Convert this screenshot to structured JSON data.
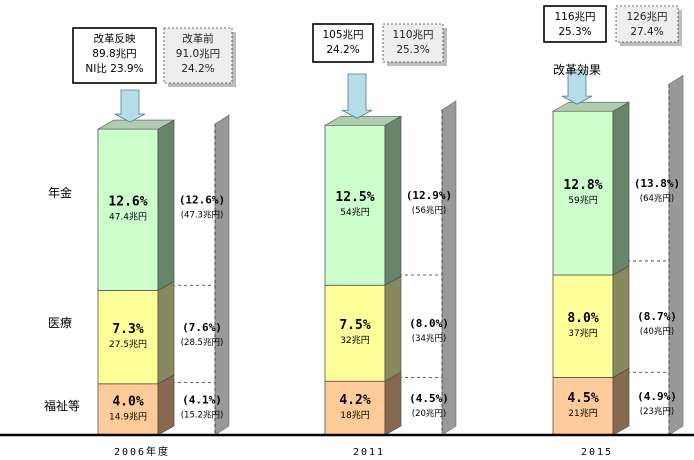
{
  "chart_data": {
    "type": "bar",
    "stacked": true,
    "categories": [
      "2006年度",
      "2011",
      "2015"
    ],
    "series": [
      {
        "name": "年金",
        "values": [
          12.6,
          12.5,
          12.8
        ],
        "amount_labels": [
          "47.4兆円",
          "54兆円",
          "59兆円"
        ],
        "pre_reform_values": [
          12.6,
          12.9,
          13.8
        ],
        "pre_reform_labels": [
          "(12.6%)",
          "(12.9%)",
          "(13.8%)"
        ],
        "pre_reform_amount_labels": [
          "(47.3兆円)",
          "(56兆円)",
          "(64兆円)"
        ]
      },
      {
        "name": "医療",
        "values": [
          7.3,
          7.5,
          8.0
        ],
        "amount_labels": [
          "27.5兆円",
          "32兆円",
          "37兆円"
        ],
        "pre_reform_values": [
          7.6,
          8.0,
          8.7
        ],
        "pre_reform_labels": [
          "(7.6%)",
          "(8.0%)",
          "(8.7%)"
        ],
        "pre_reform_amount_labels": [
          "(28.5兆円)",
          "(34兆円)",
          "(40兆円)"
        ]
      },
      {
        "name": "福祉等",
        "values": [
          4.0,
          4.2,
          4.5
        ],
        "amount_labels": [
          "14.9兆円",
          "18兆円",
          "21兆円"
        ],
        "pre_reform_values": [
          4.1,
          4.5,
          4.9
        ],
        "pre_reform_labels": [
          "(4.1%)",
          "(4.5%)",
          "(4.9%)"
        ],
        "pre_reform_amount_labels": [
          "(15.2兆円)",
          "(20兆円)",
          "(23兆円)"
        ]
      }
    ],
    "value_labels": [
      [
        "12.6%",
        "12.5%",
        "12.8%"
      ],
      [
        "7.3%",
        "7.5%",
        "8.0%"
      ],
      [
        "4.0%",
        "4.2%",
        "4.5%"
      ]
    ],
    "totals_reform": [
      [
        "改革反映",
        "89.8兆円",
        "NI比 23.9%"
      ],
      [
        "105兆円",
        "24.2%"
      ],
      [
        "116兆円",
        "25.3%"
      ]
    ],
    "totals_pre_reform": [
      [
        "改革前",
        "91.0兆円",
        "24.2%"
      ],
      [
        "110兆円",
        "25.3%"
      ],
      [
        "126兆円",
        "27.4%"
      ]
    ],
    "annotation": "改革効果",
    "colors": {
      "pension": "#ccffcc",
      "medical": "#ffff99",
      "welfare": "#ffcc99",
      "arrow": "#b7dde8"
    }
  }
}
